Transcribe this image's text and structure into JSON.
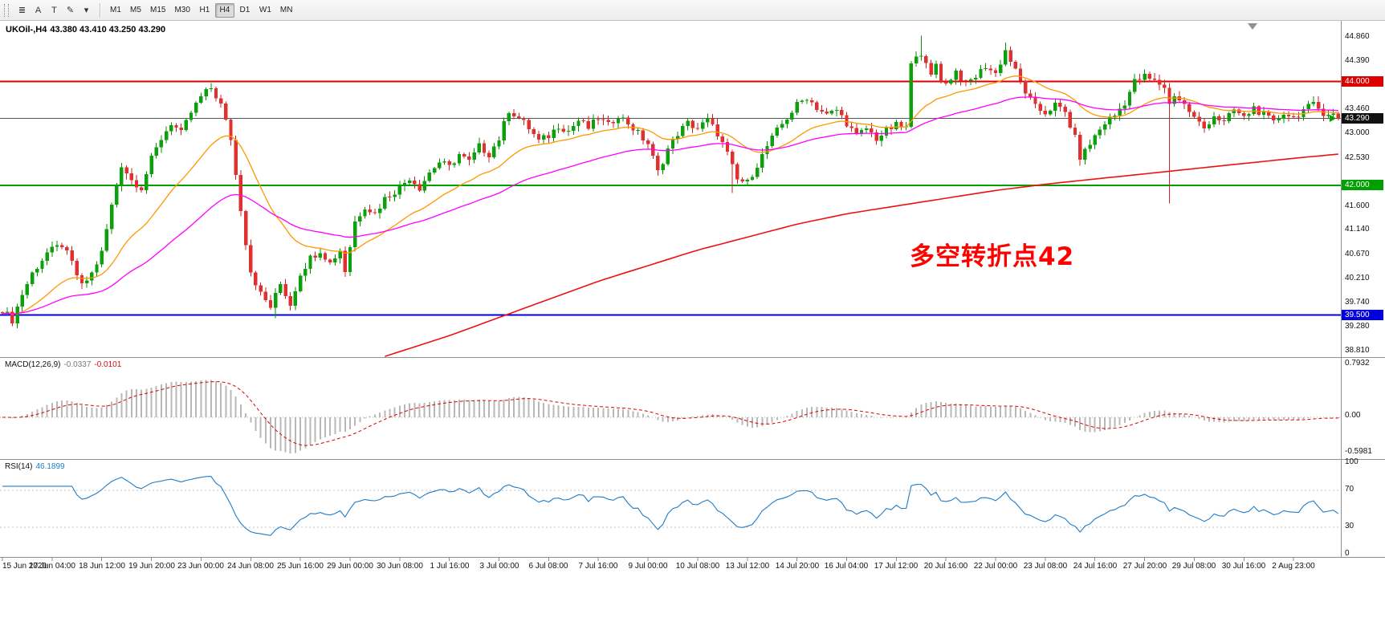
{
  "toolbar": {
    "tools": [
      {
        "name": "chart-list-icon",
        "glyph": "≣"
      },
      {
        "name": "cursor-tool-icon",
        "glyph": "A"
      },
      {
        "name": "text-tool-icon",
        "glyph": "T"
      },
      {
        "name": "draw-tool-icon",
        "glyph": "✎"
      },
      {
        "name": "tool-dropdown-caret-icon",
        "glyph": "▾"
      }
    ],
    "timeframes": [
      "M1",
      "M5",
      "M15",
      "M30",
      "H1",
      "H4",
      "D1",
      "W1",
      "MN"
    ],
    "active_timeframe": "H4"
  },
  "chart": {
    "symbol": "UKOil-,H4",
    "ohlc": "43.380 43.410 43.250 43.290",
    "annotation": {
      "text": "多空转折点42",
      "color": "#ff0000"
    },
    "current_price": "43.290",
    "current_price_value": 43.29,
    "axis_labels": [
      "44.860",
      "44.390",
      "43.460",
      "43.000",
      "42.530",
      "41.600",
      "41.140",
      "40.670",
      "40.210",
      "39.740",
      "39.280",
      "38.810"
    ],
    "hlines": [
      {
        "price": 44.0,
        "label": "44.000",
        "color": "#dd0000"
      },
      {
        "price": 42.0,
        "label": "42.000",
        "color": "#00a000"
      },
      {
        "price": 39.5,
        "label": "39.500",
        "color": "#0000dd"
      }
    ]
  },
  "macd": {
    "label": "MACD(12,26,9)",
    "main_value": "-0.0337",
    "signal_value": "-0.0101",
    "scale": [
      "0.7932",
      "0.00",
      "-0.5981"
    ]
  },
  "rsi": {
    "label": "RSI(14)",
    "value": "46.1899",
    "scale": [
      "100",
      "70",
      "30",
      "0"
    ],
    "levels": [
      70,
      30
    ]
  },
  "time_axis": [
    "15 Jun 2020",
    "17 Jun 04:00",
    "18 Jun 12:00",
    "19 Jun 20:00",
    "23 Jun 00:00",
    "24 Jun 08:00",
    "25 Jun 16:00",
    "29 Jun 00:00",
    "30 Jun 08:00",
    "1 Jul 16:00",
    "3 Jul 00:00",
    "6 Jul 08:00",
    "7 Jul 16:00",
    "9 Jul 00:00",
    "10 Jul 08:00",
    "13 Jul 12:00",
    "14 Jul 20:00",
    "16 Jul 04:00",
    "17 Jul 12:00",
    "20 Jul 16:00",
    "22 Jul 00:00",
    "23 Jul 08:00",
    "24 Jul 16:00",
    "27 Jul 20:00",
    "29 Jul 08:00",
    "30 Jul 16:00",
    "2 Aug 23:00"
  ],
  "chart_data": {
    "type": "candlestick",
    "symbol": "UKOil-",
    "timeframe": "H4",
    "visible_range": {
      "start": "15 Jun 2020",
      "end": "2 Aug 2020"
    },
    "last_bar_ohlc": {
      "open": 43.38,
      "high": 43.41,
      "low": 43.25,
      "close": 43.29
    },
    "y_axis": {
      "top_price": 45.17,
      "bottom_price": 38.69,
      "ticks": [
        44.86,
        44.39,
        43.93,
        43.46,
        43.0,
        42.53,
        42.07,
        41.6,
        41.14,
        40.67,
        40.21,
        39.74,
        39.28,
        38.81
      ]
    },
    "horizontal_levels": [
      44.0,
      42.0,
      39.5
    ],
    "bars_total": 270,
    "price_waypoints": [
      [
        0,
        39.6
      ],
      [
        2,
        39.4
      ],
      [
        4,
        39.9
      ],
      [
        6,
        40.3
      ],
      [
        9,
        40.7
      ],
      [
        12,
        40.85
      ],
      [
        14,
        40.5
      ],
      [
        16,
        40.05
      ],
      [
        18,
        40.3
      ],
      [
        20,
        40.7
      ],
      [
        22,
        41.6
      ],
      [
        24,
        42.4
      ],
      [
        26,
        42.1
      ],
      [
        28,
        41.95
      ],
      [
        30,
        42.5
      ],
      [
        32,
        42.9
      ],
      [
        34,
        43.2
      ],
      [
        36,
        43.0
      ],
      [
        38,
        43.4
      ],
      [
        40,
        43.7
      ],
      [
        42,
        43.88
      ],
      [
        44,
        43.55
      ],
      [
        46,
        42.9
      ],
      [
        47,
        42.2
      ],
      [
        49,
        40.9
      ],
      [
        50,
        40.35
      ],
      [
        52,
        39.9
      ],
      [
        54,
        39.65
      ],
      [
        56,
        40.1
      ],
      [
        58,
        39.7
      ],
      [
        60,
        40.3
      ],
      [
        62,
        40.6
      ],
      [
        64,
        40.75
      ],
      [
        66,
        40.5
      ],
      [
        68,
        40.75
      ],
      [
        69,
        40.35
      ],
      [
        71,
        41.3
      ],
      [
        73,
        41.6
      ],
      [
        75,
        41.45
      ],
      [
        77,
        41.75
      ],
      [
        80,
        41.95
      ],
      [
        82,
        42.15
      ],
      [
        84,
        41.95
      ],
      [
        86,
        42.25
      ],
      [
        88,
        42.45
      ],
      [
        90,
        42.35
      ],
      [
        92,
        42.6
      ],
      [
        94,
        42.45
      ],
      [
        96,
        42.75
      ],
      [
        98,
        42.6
      ],
      [
        100,
        42.9
      ],
      [
        102,
        43.45
      ],
      [
        104,
        43.3
      ],
      [
        106,
        43.1
      ],
      [
        108,
        42.85
      ],
      [
        110,
        42.95
      ],
      [
        112,
        43.15
      ],
      [
        114,
        43.05
      ],
      [
        116,
        43.25
      ],
      [
        118,
        43.1
      ],
      [
        120,
        43.3
      ],
      [
        122,
        43.15
      ],
      [
        124,
        43.35
      ],
      [
        126,
        43.2
      ],
      [
        128,
        43.0
      ],
      [
        130,
        42.8
      ],
      [
        132,
        42.25
      ],
      [
        134,
        42.7
      ],
      [
        136,
        43.0
      ],
      [
        138,
        43.2
      ],
      [
        140,
        43.1
      ],
      [
        142,
        43.25
      ],
      [
        144,
        43.0
      ],
      [
        146,
        42.6
      ],
      [
        148,
        42.1
      ],
      [
        150,
        42.05
      ],
      [
        152,
        42.4
      ],
      [
        154,
        42.75
      ],
      [
        156,
        43.05
      ],
      [
        158,
        43.3
      ],
      [
        160,
        43.55
      ],
      [
        162,
        43.7
      ],
      [
        164,
        43.5
      ],
      [
        166,
        43.35
      ],
      [
        168,
        43.45
      ],
      [
        170,
        43.2
      ],
      [
        172,
        42.95
      ],
      [
        174,
        43.1
      ],
      [
        176,
        42.9
      ],
      [
        178,
        43.05
      ],
      [
        180,
        43.15
      ],
      [
        182,
        43.1
      ],
      [
        183,
        44.3
      ],
      [
        184,
        44.55
      ],
      [
        185,
        44.55
      ],
      [
        186,
        44.3
      ],
      [
        187,
        44.1
      ],
      [
        188,
        44.35
      ],
      [
        189,
        44.05
      ],
      [
        190,
        43.95
      ],
      [
        192,
        44.2
      ],
      [
        194,
        43.95
      ],
      [
        196,
        44.1
      ],
      [
        198,
        44.3
      ],
      [
        200,
        44.15
      ],
      [
        202,
        44.6
      ],
      [
        204,
        44.2
      ],
      [
        206,
        43.8
      ],
      [
        208,
        43.5
      ],
      [
        210,
        43.4
      ],
      [
        212,
        43.55
      ],
      [
        214,
        43.4
      ],
      [
        216,
        42.9
      ],
      [
        217,
        42.55
      ],
      [
        218,
        42.65
      ],
      [
        220,
        42.95
      ],
      [
        222,
        43.2
      ],
      [
        224,
        43.35
      ],
      [
        226,
        43.6
      ],
      [
        228,
        44.0
      ],
      [
        230,
        44.1
      ],
      [
        232,
        44.0
      ],
      [
        234,
        43.9
      ],
      [
        235,
        43.55
      ],
      [
        236,
        43.75
      ],
      [
        238,
        43.55
      ],
      [
        240,
        43.3
      ],
      [
        242,
        43.1
      ],
      [
        244,
        43.35
      ],
      [
        246,
        43.2
      ],
      [
        248,
        43.45
      ],
      [
        250,
        43.3
      ],
      [
        252,
        43.5
      ],
      [
        254,
        43.35
      ],
      [
        256,
        43.2
      ],
      [
        258,
        43.4
      ],
      [
        260,
        43.3
      ],
      [
        262,
        43.45
      ],
      [
        264,
        43.55
      ],
      [
        266,
        43.4
      ],
      [
        268,
        43.38
      ],
      [
        269,
        43.29
      ]
    ],
    "spikes": [
      {
        "bar": 2,
        "low": 39.28
      },
      {
        "bar": 42,
        "high": 43.97
      },
      {
        "bar": 55,
        "low": 39.44
      },
      {
        "bar": 147,
        "low": 41.85
      },
      {
        "bar": 185,
        "high": 44.88
      },
      {
        "bar": 202,
        "high": 44.75
      },
      {
        "bar": 217,
        "low": 42.38
      },
      {
        "bar": 235,
        "low": 41.65
      },
      {
        "bar": 269,
        "high": 43.41,
        "low": 43.25
      }
    ],
    "moving_averages": [
      {
        "name": "fast",
        "color": "#ff9800",
        "period": 21
      },
      {
        "name": "medium",
        "color": "#ff00ff",
        "period": 55
      },
      {
        "name": "slow",
        "color": "#ee1111"
      }
    ],
    "slow_ma_waypoints": [
      [
        77,
        38.7
      ],
      [
        90,
        39.1
      ],
      [
        100,
        39.45
      ],
      [
        110,
        39.8
      ],
      [
        120,
        40.15
      ],
      [
        130,
        40.45
      ],
      [
        140,
        40.75
      ],
      [
        150,
        41.0
      ],
      [
        160,
        41.25
      ],
      [
        170,
        41.45
      ],
      [
        180,
        41.6
      ],
      [
        190,
        41.75
      ],
      [
        200,
        41.9
      ],
      [
        210,
        42.02
      ],
      [
        220,
        42.12
      ],
      [
        230,
        42.22
      ],
      [
        240,
        42.32
      ],
      [
        250,
        42.42
      ],
      [
        260,
        42.52
      ],
      [
        269,
        42.6
      ]
    ],
    "indicators": [
      {
        "name": "MACD",
        "params": [
          12,
          26,
          9
        ]
      },
      {
        "name": "RSI",
        "params": [
          14
        ]
      }
    ]
  }
}
